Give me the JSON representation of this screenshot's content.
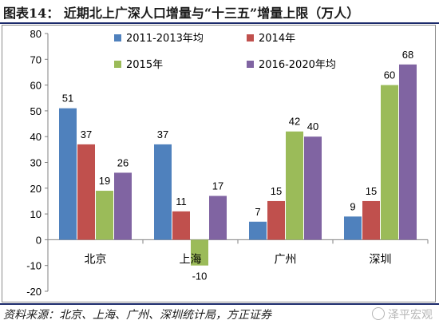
{
  "title": "图表14：  近期北上广深人口增量与“十三五”增量上限（万人）",
  "source": "资料来源：北京、上海、广州、深圳统计局，方正证券",
  "watermark": "泽平宏观",
  "chart_data": {
    "type": "bar",
    "categories": [
      "北京",
      "上海",
      "广州",
      "深圳"
    ],
    "series": [
      {
        "name": "2011-2013年均",
        "color": "#4f81bd",
        "values": [
          51,
          37,
          7,
          9
        ]
      },
      {
        "name": "2014年",
        "color": "#c0504d",
        "values": [
          37,
          11,
          15,
          15
        ]
      },
      {
        "name": "2015年",
        "color": "#9bbb59",
        "values": [
          19,
          -10,
          42,
          60
        ]
      },
      {
        "name": "2016-2020年均",
        "color": "#8064a2",
        "values": [
          26,
          17,
          40,
          68
        ]
      }
    ],
    "ylim": [
      -20,
      80
    ],
    "yticks": [
      -20,
      -10,
      0,
      10,
      20,
      30,
      40,
      50,
      60,
      70,
      80
    ],
    "legend_position": "top-right",
    "grid": false
  }
}
